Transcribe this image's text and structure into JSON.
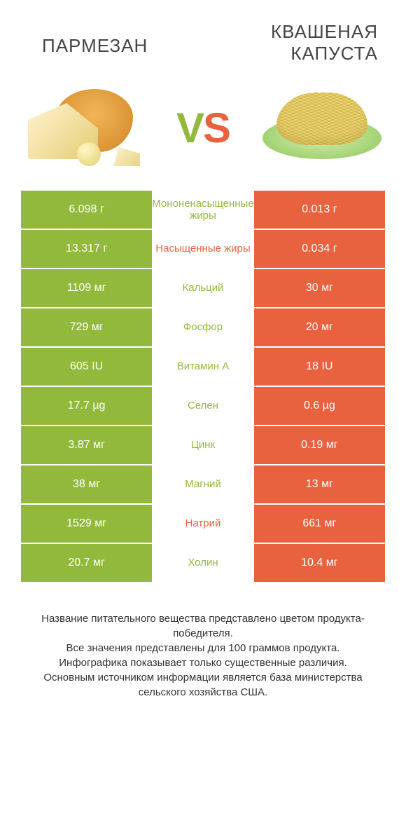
{
  "header": {
    "left_title": "ПАРМЕЗАН",
    "right_title": "КВАШЕНАЯ КАПУСТА"
  },
  "vs": {
    "v": "V",
    "s": "S"
  },
  "colors": {
    "left": "#93b93c",
    "right": "#e9623f",
    "mid_bg": "#ffffff"
  },
  "table": {
    "rows": [
      {
        "left": "6.098 г",
        "label": "Мононенасыщенные жиры",
        "right": "0.013 г",
        "label_color": "#93b93c"
      },
      {
        "left": "13.317 г",
        "label": "Насыщенные жиры",
        "right": "0.034 г",
        "label_color": "#e9623f"
      },
      {
        "left": "1109 мг",
        "label": "Кальций",
        "right": "30 мг",
        "label_color": "#93b93c"
      },
      {
        "left": "729 мг",
        "label": "Фосфор",
        "right": "20 мг",
        "label_color": "#93b93c"
      },
      {
        "left": "605 IU",
        "label": "Витамин A",
        "right": "18 IU",
        "label_color": "#93b93c"
      },
      {
        "left": "17.7 µg",
        "label": "Селен",
        "right": "0.6 µg",
        "label_color": "#93b93c"
      },
      {
        "left": "3.87 мг",
        "label": "Цинк",
        "right": "0.19 мг",
        "label_color": "#93b93c"
      },
      {
        "left": "38 мг",
        "label": "Магний",
        "right": "13 мг",
        "label_color": "#93b93c"
      },
      {
        "left": "1529 мг",
        "label": "Натрий",
        "right": "661 мг",
        "label_color": "#e9623f"
      },
      {
        "left": "20.7 мг",
        "label": "Холин",
        "right": "10.4 мг",
        "label_color": "#93b93c"
      }
    ]
  },
  "footer": {
    "line1": "Название питательного вещества представлено цветом продукта-победителя.",
    "line2": "Все значения представлены для 100 граммов продукта.",
    "line3": "Инфографика показывает только существенные различия.",
    "line4": "Основным источником информации является база министерства сельского хозяйства США."
  }
}
